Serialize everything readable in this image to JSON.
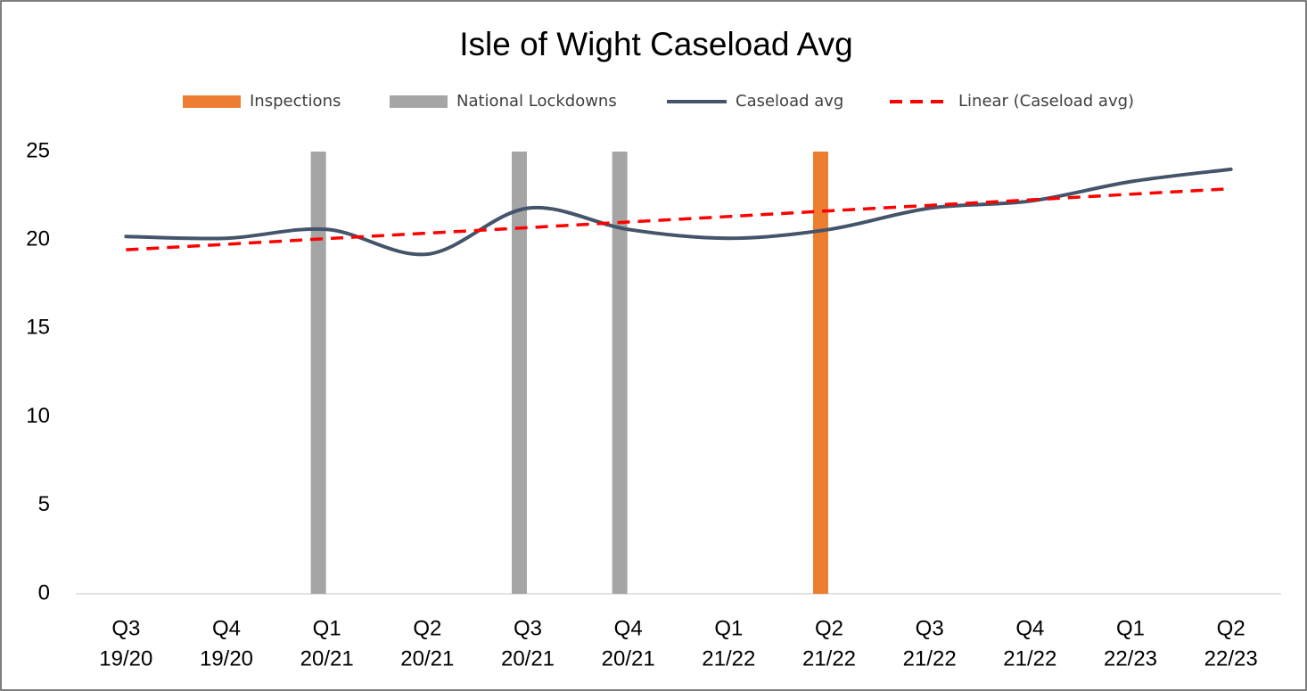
{
  "chart_data": {
    "type": "combo",
    "title": "Isle of Wight Caseload Avg",
    "categories": [
      [
        "Q3",
        "19/20"
      ],
      [
        "Q4",
        "19/20"
      ],
      [
        "Q1",
        "20/21"
      ],
      [
        "Q2",
        "20/21"
      ],
      [
        "Q3",
        "20/21"
      ],
      [
        "Q4",
        "20/21"
      ],
      [
        "Q1",
        "21/22"
      ],
      [
        "Q2",
        "21/22"
      ],
      [
        "Q3",
        "21/22"
      ],
      [
        "Q4",
        "21/22"
      ],
      [
        "Q1",
        "22/23"
      ],
      [
        "Q2",
        "22/23"
      ]
    ],
    "series": [
      {
        "name": "Inspections",
        "type": "bar",
        "color": "#ed7d31",
        "values": [
          null,
          null,
          null,
          null,
          null,
          null,
          null,
          25,
          null,
          null,
          null,
          null
        ]
      },
      {
        "name": "National Lockdowns",
        "type": "bar",
        "color": "#a5a5a5",
        "values": [
          null,
          null,
          25,
          null,
          25,
          25,
          null,
          null,
          null,
          null,
          null,
          null
        ]
      },
      {
        "name": "Caseload avg",
        "type": "line",
        "smooth": true,
        "color": "#44546a",
        "values": [
          20.2,
          20.1,
          20.6,
          19.2,
          21.8,
          20.6,
          20.1,
          20.6,
          21.8,
          22.2,
          23.3,
          24.0
        ]
      },
      {
        "name": "Linear (Caseload avg)",
        "type": "line",
        "dashed": true,
        "color": "#ff0000",
        "values": [
          19.45,
          19.76,
          20.08,
          20.39,
          20.7,
          21.02,
          21.33,
          21.65,
          21.96,
          22.27,
          22.59,
          22.9
        ]
      }
    ],
    "ylim": [
      0,
      25
    ],
    "yticks": [
      0,
      5,
      10,
      15,
      20,
      25
    ],
    "grid": false,
    "legend": "top"
  }
}
